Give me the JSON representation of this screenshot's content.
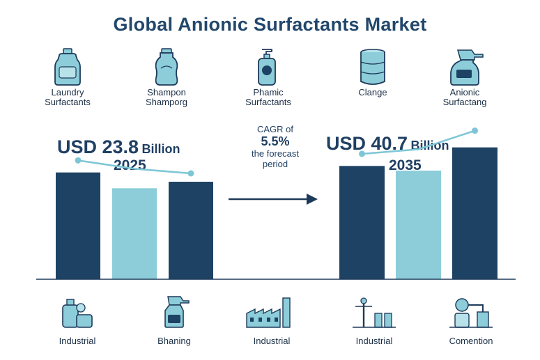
{
  "title": "Global Anionic Surfactants Market",
  "top_icons": [
    {
      "icon": "detergent-bottle-icon",
      "line1": "Laundry",
      "line2": "Surfactants"
    },
    {
      "icon": "shampoo-bottle-icon",
      "line1": "Shampon",
      "line2": "Shamporg"
    },
    {
      "icon": "pump-bottle-icon",
      "line1": "Phamic",
      "line2": "Surfactants"
    },
    {
      "icon": "barrel-icon",
      "line1": "Clange",
      "line2": ""
    },
    {
      "icon": "spray-bottle-icon",
      "line1": "Anionic",
      "line2": "Surfactang"
    }
  ],
  "left_value": {
    "amount": "USD 23.8",
    "unit": "Billion",
    "year": "2025"
  },
  "right_value": {
    "amount": "USD 40.7",
    "unit": "Billion",
    "year": "2035"
  },
  "cagr": {
    "line1": "CAGR of",
    "value": "5.5%",
    "line2": "the forecast",
    "line3": "period"
  },
  "bottom_icons": [
    {
      "icon": "cleaning-products-icon",
      "label": "Industrial"
    },
    {
      "icon": "spray-bottle-icon",
      "label": "Bhaning"
    },
    {
      "icon": "factory-icon",
      "label": "Industrial"
    },
    {
      "icon": "plant-equipment-icon",
      "label": "Industrial"
    },
    {
      "icon": "lab-equipment-icon",
      "label": "Comention"
    }
  ],
  "colors": {
    "dark": "#1e4264",
    "light": "#8ccdd9",
    "line": "#7ec6d6",
    "text": "#1f3f63"
  },
  "chart_data": [
    {
      "type": "bar",
      "categories": [
        "",
        "",
        ""
      ],
      "values": [
        115,
        98,
        105
      ],
      "trend": [
        128,
        119,
        114
      ],
      "ylim": [
        0,
        150
      ],
      "grid": false
    },
    {
      "type": "bar",
      "categories": [
        "",
        "",
        ""
      ],
      "values": [
        122,
        117,
        142
      ],
      "trend": [
        135,
        140,
        160
      ],
      "ylim": [
        0,
        150
      ],
      "grid": false
    }
  ]
}
